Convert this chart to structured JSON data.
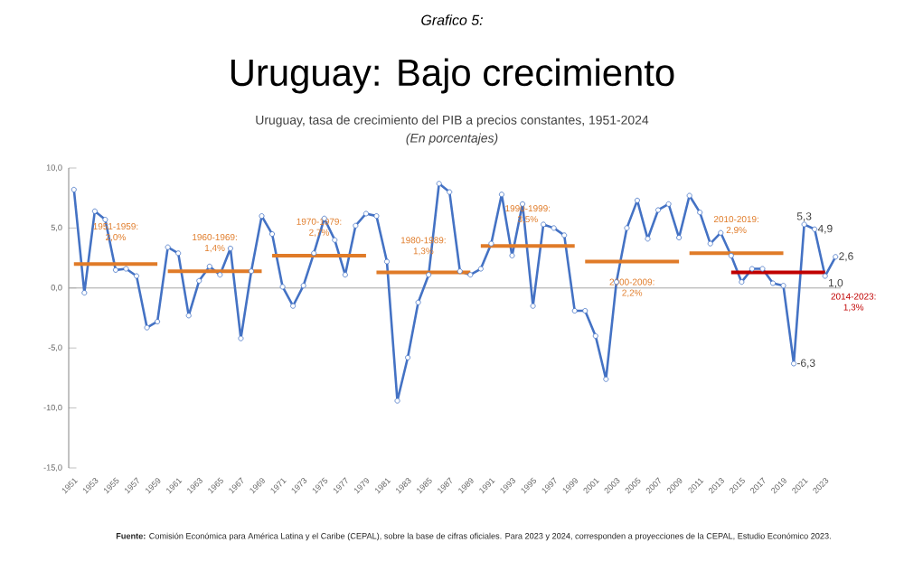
{
  "chart_data": {
    "type": "line",
    "title": "Uruguay: Bajo crecimiento",
    "subtitle": "Uruguay, tasa de crecimiento del PIB a precios constantes, 1951-2024",
    "annotations": [
      "*Grafico 5:*",
      "*(En porcentajes)*",
      "**Fuente:** Comisión Económica para América Latina y el Caribe (CEPAL), sobre la base de cifras oficiales. Para 2023 y 2024, corresponden a proyecciones de la CEPAL, Estudio Económico 2023."
    ],
    "xlim": [
      1950.5,
      2024.5
    ],
    "xticks": [
      1951,
      1953,
      1955,
      1957,
      1959,
      1961,
      1963,
      1965,
      1967,
      1969,
      1971,
      1973,
      1975,
      1977,
      1979,
      1981,
      1983,
      1985,
      1987,
      1989,
      1991,
      1993,
      1995,
      1997,
      1999,
      2001,
      2003,
      2005,
      2007,
      2009,
      2011,
      2013,
      2015,
      2017,
      2019,
      2021,
      2023
    ],
    "ylim": [
      -15,
      10
    ],
    "yticks": [
      {
        "value": 10,
        "label": "10,0"
      },
      {
        "value": 5,
        "label": "5,0"
      },
      {
        "value": 0,
        "label": "0,0"
      },
      {
        "value": -5,
        "label": "-5,0"
      },
      {
        "value": -10,
        "label": "-10,0"
      },
      {
        "value": -15,
        "label": "-15,0"
      }
    ],
    "ref_lines": [
      {
        "axis": "y",
        "value": 0,
        "color": "#a6a6a6"
      }
    ],
    "grid": false,
    "legend": false,
    "marker": "circle",
    "line_style": "solid",
    "series": [
      {
        "color": "#4472c4",
        "x": [
          1951,
          1952,
          1953,
          1954,
          1955,
          1956,
          1957,
          1958,
          1959,
          1960,
          1961,
          1962,
          1963,
          1964,
          1965,
          1966,
          1967,
          1968,
          1969,
          1970,
          1971,
          1972,
          1973,
          1974,
          1975,
          1976,
          1977,
          1978,
          1979,
          1980,
          1981,
          1982,
          1983,
          1984,
          1985,
          1986,
          1987,
          1988,
          1989,
          1990,
          1991,
          1992,
          1993,
          1994,
          1995,
          1996,
          1997,
          1998,
          1999,
          2000,
          2001,
          2002,
          2003,
          2004,
          2005,
          2006,
          2007,
          2008,
          2009,
          2010,
          2011,
          2012,
          2013,
          2014,
          2015,
          2016,
          2017,
          2018,
          2019,
          2020,
          2021,
          2022,
          2023,
          2024
        ],
        "values": [
          8.2,
          -0.4,
          6.4,
          5.7,
          1.5,
          1.6,
          1.0,
          -3.3,
          -2.8,
          3.4,
          2.9,
          -2.3,
          0.6,
          1.8,
          1.1,
          3.3,
          -4.2,
          1.4,
          6.0,
          4.5,
          0.1,
          -1.5,
          0.2,
          2.9,
          5.8,
          4.0,
          1.1,
          5.2,
          6.2,
          6.0,
          2.2,
          -9.4,
          -5.8,
          -1.2,
          1.1,
          8.7,
          8.0,
          1.4,
          1.1,
          1.6,
          3.7,
          7.8,
          2.7,
          7.0,
          -1.5,
          5.3,
          5.0,
          4.4,
          -1.9,
          -1.9,
          -4.0,
          -7.6,
          0.5,
          5.0,
          7.3,
          4.1,
          6.5,
          7.0,
          4.2,
          7.7,
          6.3,
          3.7,
          4.6,
          2.7,
          0.5,
          1.6,
          1.6,
          0.4,
          0.2,
          -6.3,
          5.3,
          4.9,
          1.0,
          2.6
        ],
        "value_labels": [
          null,
          null,
          null,
          null,
          null,
          null,
          null,
          null,
          null,
          null,
          null,
          null,
          null,
          null,
          null,
          null,
          null,
          null,
          null,
          null,
          null,
          null,
          null,
          null,
          null,
          null,
          null,
          null,
          null,
          null,
          null,
          null,
          null,
          null,
          null,
          null,
          null,
          null,
          null,
          null,
          null,
          null,
          null,
          null,
          null,
          null,
          null,
          null,
          null,
          null,
          null,
          null,
          null,
          null,
          null,
          null,
          null,
          null,
          null,
          null,
          null,
          null,
          null,
          null,
          null,
          null,
          null,
          null,
          null,
          "-6,3",
          "5,3",
          "4,9",
          "1,0",
          "2,6"
        ]
      },
      {
        "name": "1951-1959: 2,0%",
        "color": "#e07b28",
        "marker": "none",
        "x": [
          1951,
          1959
        ],
        "values": [
          2.0,
          2.0
        ]
      },
      {
        "name": "1960-1969: 1,4%",
        "color": "#e07b28",
        "marker": "none",
        "x": [
          1960,
          1969
        ],
        "values": [
          1.4,
          1.4
        ]
      },
      {
        "name": "1970-1979: 2,7%",
        "color": "#e07b28",
        "marker": "none",
        "x": [
          1970,
          1979
        ],
        "values": [
          2.7,
          2.7
        ]
      },
      {
        "name": "1980-1989: 1,3%",
        "color": "#e07b28",
        "marker": "none",
        "x": [
          1980,
          1989
        ],
        "values": [
          1.3,
          1.3
        ]
      },
      {
        "name": "1990-1999: 3,5%",
        "color": "#e07b28",
        "marker": "none",
        "x": [
          1990,
          1999
        ],
        "values": [
          3.5,
          3.5
        ]
      },
      {
        "name": "2000-2009: 2,2%",
        "color": "#e07b28",
        "marker": "none",
        "x": [
          2000,
          2009
        ],
        "values": [
          2.2,
          2.2
        ]
      },
      {
        "name": "2010-2019: 2,9%",
        "color": "#e07b28",
        "marker": "none",
        "x": [
          2010,
          2019
        ],
        "values": [
          2.9,
          2.9
        ]
      },
      {
        "name": "2014-2023: 1,3%",
        "color": "#c00000",
        "marker": "none",
        "x": [
          2014,
          2023
        ],
        "values": [
          1.3,
          1.3
        ]
      }
    ]
  }
}
